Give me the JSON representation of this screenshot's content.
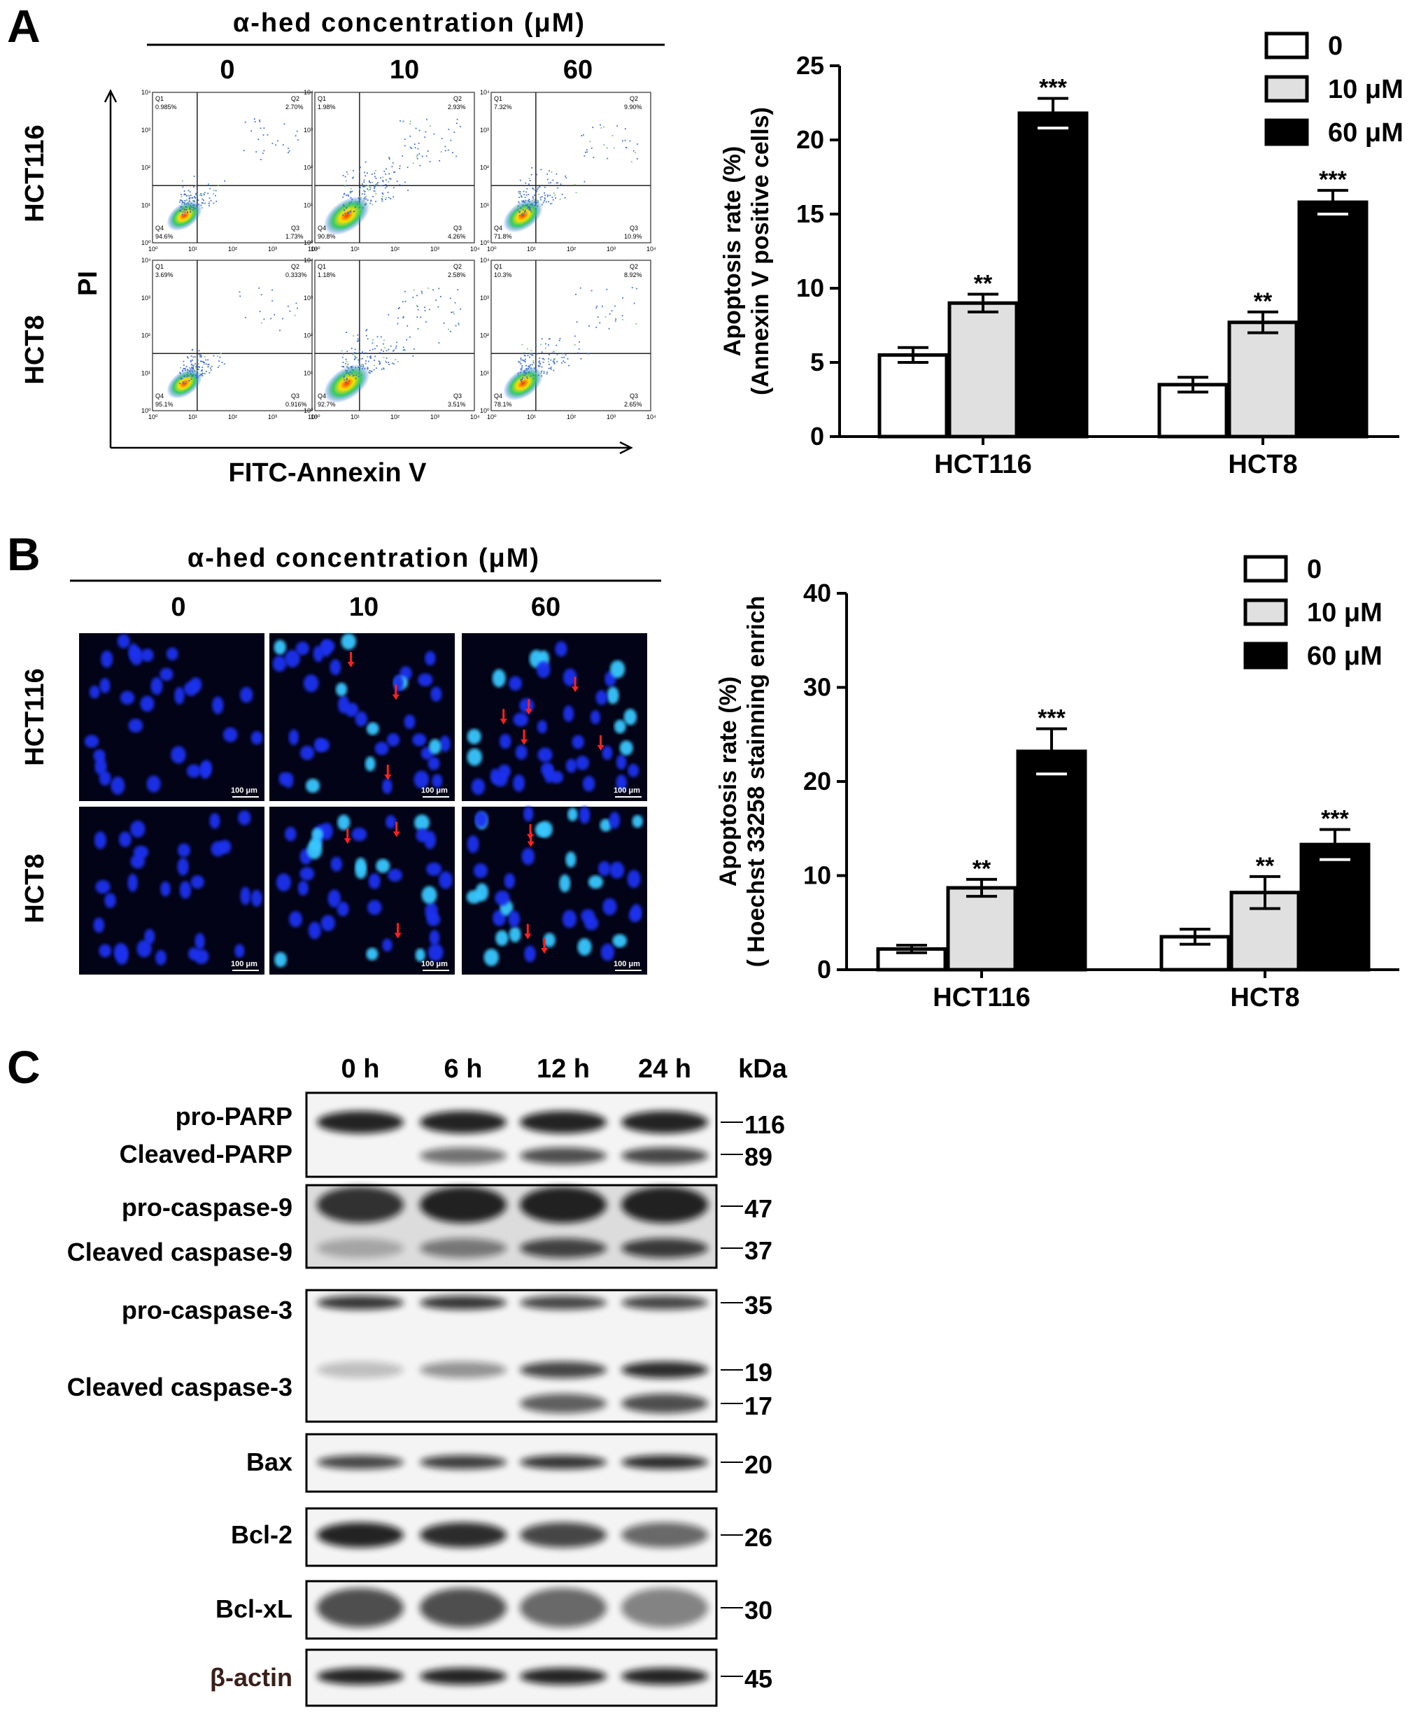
{
  "panels": {
    "a": "A",
    "b": "B",
    "c": "C"
  },
  "panel_a": {
    "header": "α-hed concentration (μM)",
    "columns": [
      "0",
      "10",
      "60"
    ],
    "rows": [
      "HCT116",
      "HCT8"
    ],
    "y_axis_label": "PI",
    "x_axis_label": "FITC-Annexin V",
    "flow_plots": [
      {
        "q1": "0.985%",
        "q2": "2.70%",
        "q3": "1.73%",
        "q4": "94.6%"
      },
      {
        "q1": "1.98%",
        "q2": "2.93%",
        "q3": "4.26%",
        "q4": "90.8%"
      },
      {
        "q1": "7.32%",
        "q2": "9.90%",
        "q3": "10.9%",
        "q4": "71.8%"
      },
      {
        "q1": "3.69%",
        "q2": "0.333%",
        "q3": "0.916%",
        "q4": "95.1%"
      },
      {
        "q1": "1.18%",
        "q2": "2.58%",
        "q3": "3.51%",
        "q4": "92.7%"
      },
      {
        "q1": "10.3%",
        "q2": "8.92%",
        "q3": "2.65%",
        "q4": "78.1%"
      }
    ],
    "quadrant_names": [
      "Q1",
      "Q2",
      "Q3",
      "Q4"
    ],
    "tick_labels": [
      "10⁰",
      "10¹",
      "10²",
      "10³",
      "10⁴"
    ]
  },
  "panel_b": {
    "header": "α-hed concentration (μM)",
    "columns": [
      "0",
      "10",
      "60"
    ],
    "rows": [
      "HCT116",
      "HCT8"
    ],
    "scale_bar": "100 μm"
  },
  "chart_data": [
    {
      "type": "bar",
      "categories": [
        "HCT116",
        "HCT8"
      ],
      "series": [
        {
          "name": "0",
          "values": [
            5.5,
            3.5
          ],
          "errors": [
            0.5,
            0.5
          ],
          "sig": [
            "",
            ""
          ],
          "color": "#ffffff"
        },
        {
          "name": "10 μM",
          "values": [
            9.0,
            7.7
          ],
          "errors": [
            0.6,
            0.7
          ],
          "sig": [
            "**",
            "**"
          ],
          "color": "#e0e0e0"
        },
        {
          "name": "60 μM",
          "values": [
            21.8,
            15.8
          ],
          "errors": [
            1.0,
            0.8
          ],
          "sig": [
            "***",
            "***"
          ],
          "color": "#000000"
        }
      ],
      "ylabel_lines": [
        "Apoptosis rate (%)",
        "(Annexin V positive cells)"
      ],
      "ylim": [
        0,
        25
      ],
      "yticks": [
        0,
        5,
        10,
        15,
        20,
        25
      ],
      "legend": "top-right"
    },
    {
      "type": "bar",
      "categories": [
        "HCT116",
        "HCT8"
      ],
      "series": [
        {
          "name": "0",
          "values": [
            2.2,
            3.5
          ],
          "errors": [
            0.4,
            0.8
          ],
          "sig": [
            "",
            ""
          ],
          "color": "#ffffff"
        },
        {
          "name": "10 μM",
          "values": [
            8.7,
            8.2
          ],
          "errors": [
            0.9,
            1.7
          ],
          "sig": [
            "**",
            "**"
          ],
          "color": "#e0e0e0"
        },
        {
          "name": "60 μM",
          "values": [
            23.2,
            13.3
          ],
          "errors": [
            2.4,
            1.6
          ],
          "sig": [
            "***",
            "***"
          ],
          "color": "#000000"
        }
      ],
      "ylabel_lines": [
        "Apoptosis rate (%)",
        "( Hoechst 33258 stainning enrich"
      ],
      "ylim": [
        0,
        40
      ],
      "yticks": [
        0,
        10,
        20,
        30,
        40
      ],
      "legend": "top-right"
    }
  ],
  "panel_c": {
    "time_points": [
      "0 h",
      "6 h",
      "12 h",
      "24 h"
    ],
    "kda_header": "kDa",
    "labels": [
      "pro-PARP",
      "Cleaved-PARP",
      "pro-caspase-9",
      "Cleaved caspase-9",
      "pro-caspase-3",
      "Cleaved caspase-3",
      "Bax",
      "Bcl-2",
      "Bcl-xL",
      "β-actin"
    ],
    "markers": [
      "116",
      "89",
      "47",
      "37",
      "35",
      "19",
      "17",
      "20",
      "26",
      "30",
      "45"
    ]
  }
}
